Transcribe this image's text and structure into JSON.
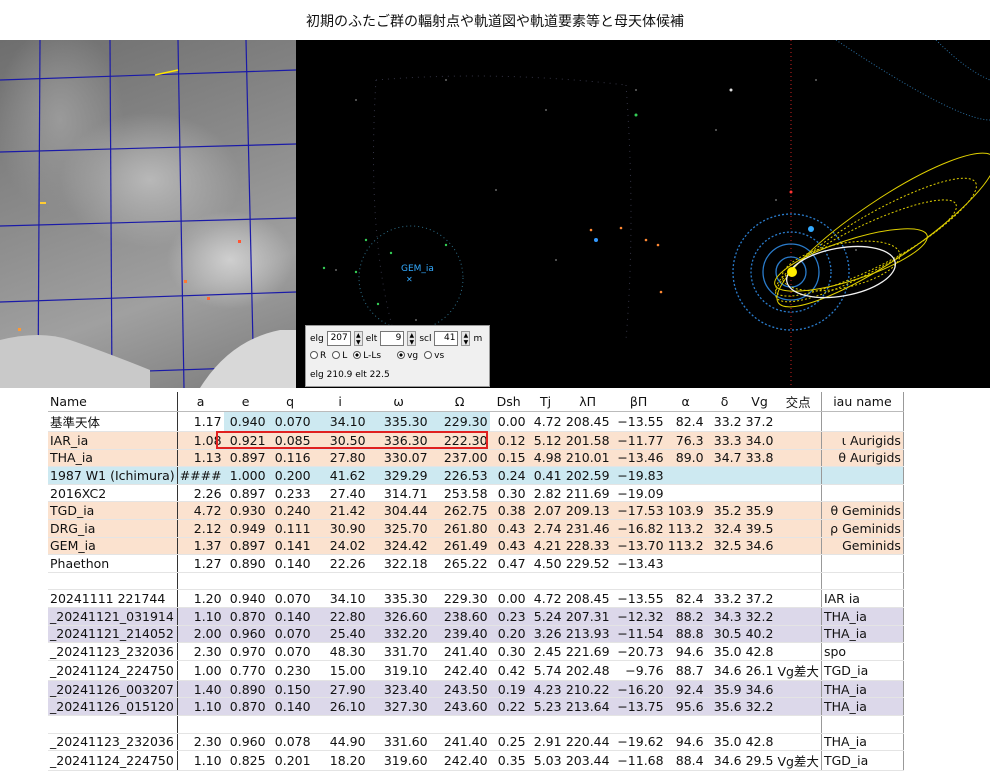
{
  "title": "初期のふたご群の輻射点や軌道図や軌道要素等と母天体候補",
  "sky": {
    "label": "GEM_ia"
  },
  "controls": {
    "elg_label": "elg",
    "elg_value": "207",
    "elt_label": "elt",
    "elt_value": "9",
    "scl_label": "scl",
    "scl_value": "41",
    "m_label": "m",
    "radio_r": "R",
    "radio_l": "L",
    "radio_lls": "L-Ls",
    "radio_vg": "vg",
    "radio_vs": "vs",
    "status": "elg 210.9 elt 22.5"
  },
  "headers": [
    "Name",
    "a",
    "e",
    "q",
    "i",
    "ω",
    "Ω",
    "Dsh",
    "Tj",
    "λΠ",
    "βΠ",
    "α",
    "δ",
    "Vg",
    "交点",
    "iau name"
  ],
  "rows": [
    {
      "bg": "",
      "cells": [
        "基準天体",
        "1.17",
        "0.940",
        "0.070",
        "34.10",
        "335.30",
        "229.30",
        "0.00",
        "4.72",
        "208.45",
        "−13.55",
        "82.4",
        "33.2",
        "37.2",
        "",
        ""
      ],
      "mid": "bgBlue"
    },
    {
      "bg": "bgOrange",
      "cells": [
        "IAR_ia",
        "1.08",
        "0.921",
        "0.085",
        "30.50",
        "336.30",
        "222.30",
        "0.12",
        "5.12",
        "201.58",
        "−11.77",
        "76.3",
        "33.3",
        "34.0",
        "",
        "ι  Aurigids"
      ]
    },
    {
      "bg": "bgOrange",
      "cells": [
        "THA_ia",
        "1.13",
        "0.897",
        "0.116",
        "27.80",
        "330.07",
        "237.00",
        "0.15",
        "4.98",
        "210.01",
        "−13.46",
        "89.0",
        "34.7",
        "33.8",
        "",
        "θ  Aurigids"
      ]
    },
    {
      "bg": "bgBlue",
      "cells": [
        "1987 W1 (Ichimura)",
        "####",
        "1.000",
        "0.200",
        "41.62",
        "329.29",
        "226.53",
        "0.24",
        "0.41",
        "202.59",
        "−19.83",
        "",
        "",
        "",
        "",
        ""
      ]
    },
    {
      "bg": "",
      "cells": [
        "2016XC2",
        "2.26",
        "0.897",
        "0.233",
        "27.40",
        "314.71",
        "253.58",
        "0.30",
        "2.82",
        "211.69",
        "−19.09",
        "",
        "",
        "",
        "",
        ""
      ]
    },
    {
      "bg": "bgOrange",
      "cells": [
        "TGD_ia",
        "4.72",
        "0.930",
        "0.240",
        "21.42",
        "304.44",
        "262.75",
        "0.38",
        "2.07",
        "209.13",
        "−17.53",
        "103.9",
        "35.2",
        "35.9",
        "",
        "θ  Geminids"
      ]
    },
    {
      "bg": "bgOrange",
      "cells": [
        "DRG_ia",
        "2.12",
        "0.949",
        "0.111",
        "30.90",
        "325.70",
        "261.80",
        "0.43",
        "2.74",
        "231.46",
        "−16.82",
        "113.2",
        "32.4",
        "39.5",
        "",
        "ρ  Geminids"
      ]
    },
    {
      "bg": "bgOrange",
      "cells": [
        "GEM_ia",
        "1.37",
        "0.897",
        "0.141",
        "24.02",
        "324.42",
        "261.49",
        "0.43",
        "4.21",
        "228.33",
        "−13.70",
        "113.2",
        "32.5",
        "34.6",
        "",
        "Geminids"
      ]
    },
    {
      "bg": "",
      "cells": [
        "Phaethon",
        "1.27",
        "0.890",
        "0.140",
        "22.26",
        "322.18",
        "265.22",
        "0.47",
        "4.50",
        "229.52",
        "−13.43",
        "",
        "",
        "",
        "",
        ""
      ]
    },
    {
      "bg": "",
      "cells": [
        "",
        "",
        "",
        "",
        "",
        "",
        "",
        "",
        "",
        "",
        "",
        "",
        "",
        "",
        "",
        ""
      ]
    },
    {
      "bg": "",
      "cells": [
        "20241111 221744",
        "1.20",
        "0.940",
        "0.070",
        "34.10",
        "335.30",
        "229.30",
        "0.00",
        "4.72",
        "208.45",
        "−13.55",
        "82.4",
        "33.2",
        "37.2",
        "",
        "IAR ia"
      ]
    },
    {
      "bg": "bgPurple",
      "cells": [
        "_20241121_031914",
        "1.10",
        "0.870",
        "0.140",
        "22.80",
        "326.60",
        "238.60",
        "0.23",
        "5.24",
        "207.31",
        "−12.32",
        "88.2",
        "34.3",
        "32.2",
        "",
        "THA_ia"
      ]
    },
    {
      "bg": "bgPurple",
      "cells": [
        "_20241121_214052",
        "2.00",
        "0.960",
        "0.070",
        "25.40",
        "332.20",
        "239.40",
        "0.20",
        "3.26",
        "213.93",
        "−11.54",
        "88.8",
        "30.5",
        "40.2",
        "",
        "THA_ia"
      ]
    },
    {
      "bg": "",
      "cells": [
        "_20241123_232036",
        "2.30",
        "0.970",
        "0.070",
        "48.30",
        "331.70",
        "241.40",
        "0.30",
        "2.45",
        "221.69",
        "−20.73",
        "94.6",
        "35.0",
        "42.8",
        "",
        "spo"
      ]
    },
    {
      "bg": "",
      "cells": [
        "_20241124_224750",
        "1.00",
        "0.770",
        "0.230",
        "15.00",
        "319.10",
        "242.40",
        "0.42",
        "5.74",
        "202.48",
        "−9.76",
        "88.7",
        "34.6",
        "26.1",
        "Vg差大",
        "TGD_ia"
      ]
    },
    {
      "bg": "bgPurple",
      "cells": [
        "_20241126_003207",
        "1.40",
        "0.890",
        "0.150",
        "27.90",
        "323.40",
        "243.50",
        "0.19",
        "4.23",
        "210.22",
        "−16.20",
        "92.4",
        "35.9",
        "34.6",
        "",
        "THA_ia"
      ]
    },
    {
      "bg": "bgPurple",
      "cells": [
        "_20241126_015120",
        "1.10",
        "0.870",
        "0.140",
        "26.10",
        "327.30",
        "243.60",
        "0.22",
        "5.23",
        "213.64",
        "−13.75",
        "95.6",
        "35.6",
        "32.2",
        "",
        "THA_ia"
      ]
    },
    {
      "bg": "",
      "cells": [
        "",
        "",
        "",
        "",
        "",
        "",
        "",
        "",
        "",
        "",
        "",
        "",
        "",
        "",
        "",
        ""
      ]
    },
    {
      "bg": "",
      "cells": [
        "_20241123_232036",
        "2.30",
        "0.960",
        "0.078",
        "44.90",
        "331.60",
        "241.40",
        "0.25",
        "2.91",
        "220.44",
        "−19.62",
        "94.6",
        "35.0",
        "42.8",
        "",
        "THA_ia"
      ]
    },
    {
      "bg": "",
      "cells": [
        "_20241124_224750",
        "1.10",
        "0.825",
        "0.201",
        "18.20",
        "319.60",
        "242.40",
        "0.35",
        "5.03",
        "203.44",
        "−11.68",
        "88.4",
        "34.6",
        "29.5",
        "Vg差大",
        "TGD_ia"
      ]
    }
  ]
}
